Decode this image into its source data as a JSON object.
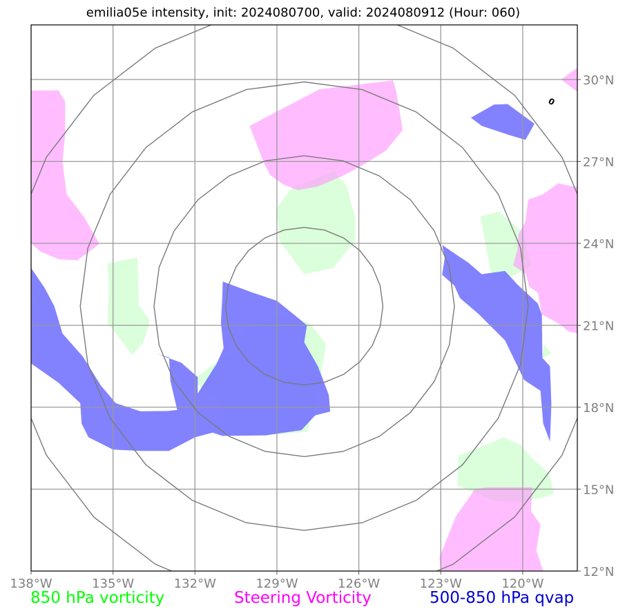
{
  "title": "emilia05e intensity, init: 2024080700, valid: 2024080912 (Hour: 060)",
  "map": {
    "projection": "lat-lon",
    "extent": {
      "lon_min": -138,
      "lon_max": -118,
      "lat_min": 12,
      "lat_max": 32
    },
    "lon_ticks": [
      {
        "value": -138,
        "label": "138°W"
      },
      {
        "value": -135,
        "label": "135°W"
      },
      {
        "value": -132,
        "label": "132°W"
      },
      {
        "value": -129,
        "label": "129°W"
      },
      {
        "value": -126,
        "label": "126°W"
      },
      {
        "value": -123,
        "label": "123°W"
      },
      {
        "value": -120,
        "label": "120°W"
      }
    ],
    "lat_ticks": [
      {
        "value": 30,
        "label": "30°N"
      },
      {
        "value": 27,
        "label": "27°N"
      },
      {
        "value": 24,
        "label": "24°N"
      },
      {
        "value": 21,
        "label": "21°N"
      },
      {
        "value": 18,
        "label": "18°N"
      },
      {
        "value": 15,
        "label": "15°N"
      },
      {
        "value": 12,
        "label": "12°N"
      }
    ],
    "gridlines": true,
    "range_rings_deg_radius": [
      2.88,
      5.5,
      8.2,
      10.9
    ],
    "storm_center": {
      "lon": -128.0,
      "lat": 21.7
    }
  },
  "layers": {
    "vort850": {
      "name": "850 hPa vorticity",
      "color": "#ccffcc",
      "polygons": [
        [
          [
            -128.45,
            26.03
          ],
          [
            -126.9,
            26.63
          ],
          [
            -126.45,
            26.11
          ],
          [
            -126.14,
            24.98
          ],
          [
            -126.14,
            24.09
          ],
          [
            -126.94,
            23.1
          ],
          [
            -128.0,
            22.87
          ],
          [
            -128.9,
            24.09
          ],
          [
            -129.0,
            25.3
          ]
        ],
        [
          [
            -135.2,
            23.26
          ],
          [
            -134.1,
            23.48
          ],
          [
            -134.06,
            21.74
          ],
          [
            -133.65,
            21.15
          ],
          [
            -133.9,
            20.36
          ],
          [
            -134.3,
            19.92
          ],
          [
            -135.2,
            21.1
          ],
          [
            -135.15,
            22.4
          ]
        ],
        [
          [
            -121.55,
            24.98
          ],
          [
            -120.87,
            25.17
          ],
          [
            -119.97,
            24.38
          ],
          [
            -119.67,
            23.17
          ],
          [
            -120.3,
            22.84
          ],
          [
            -121.1,
            22.6
          ]
        ],
        [
          [
            -119.28,
            19.8
          ],
          [
            -118.95,
            19.97
          ],
          [
            -119.23,
            20.32
          ]
        ],
        [
          [
            -132.0,
            19.07
          ],
          [
            -130.54,
            20.13
          ],
          [
            -130.2,
            20.86
          ],
          [
            -128.96,
            21.32
          ],
          [
            -127.8,
            21.08
          ],
          [
            -127.2,
            20.31
          ],
          [
            -127.48,
            18.6
          ],
          [
            -127.88,
            17.1
          ],
          [
            -129.4,
            16.98
          ],
          [
            -130.95,
            17.0
          ],
          [
            -131.0,
            18.12
          ],
          [
            -131.92,
            18.84
          ]
        ],
        [
          [
            -121.4,
            16.6
          ],
          [
            -120.7,
            16.9
          ],
          [
            -120.05,
            16.6
          ],
          [
            -119.65,
            16.12
          ],
          [
            -119.05,
            15.6
          ],
          [
            -118.85,
            14.84
          ],
          [
            -119.25,
            14.7
          ],
          [
            -120.1,
            14.54
          ],
          [
            -121.0,
            14.56
          ],
          [
            -122.4,
            15.13
          ],
          [
            -122.35,
            16.23
          ]
        ]
      ]
    },
    "steering": {
      "name": "Steering Vorticity",
      "color": "#ff99ff",
      "polygons": [
        [
          [
            -138.0,
            29.6
          ],
          [
            -137.0,
            29.6
          ],
          [
            -136.75,
            29.2
          ],
          [
            -136.75,
            28.0
          ],
          [
            -136.85,
            27.0
          ],
          [
            -136.7,
            25.8
          ],
          [
            -136.05,
            24.95
          ],
          [
            -135.5,
            23.98
          ],
          [
            -136.0,
            23.6
          ],
          [
            -136.3,
            23.38
          ],
          [
            -137.0,
            23.42
          ],
          [
            -137.65,
            23.7
          ],
          [
            -138.0,
            24.0
          ]
        ],
        [
          [
            -130.0,
            28.3
          ],
          [
            -127.45,
            29.64
          ],
          [
            -124.75,
            29.97
          ],
          [
            -124.63,
            29.56
          ],
          [
            -124.5,
            28.8
          ],
          [
            -124.4,
            28.15
          ],
          [
            -125.0,
            27.4
          ],
          [
            -125.8,
            26.9
          ],
          [
            -126.55,
            26.49
          ],
          [
            -127.5,
            26.08
          ],
          [
            -128.23,
            25.95
          ],
          [
            -128.75,
            26.15
          ],
          [
            -129.25,
            26.5
          ],
          [
            -129.5,
            27.0
          ]
        ],
        [
          [
            -117.9,
            30.5
          ],
          [
            -118.6,
            30.0
          ],
          [
            -117.8,
            29.4
          ]
        ],
        [
          [
            -118.0,
            26.05
          ],
          [
            -118.7,
            26.2
          ],
          [
            -119.25,
            25.8
          ],
          [
            -119.8,
            25.6
          ],
          [
            -119.9,
            24.8
          ],
          [
            -120.15,
            24.35
          ],
          [
            -120.2,
            23.75
          ],
          [
            -120.35,
            23.2
          ],
          [
            -119.9,
            22.9
          ],
          [
            -119.75,
            22.4
          ],
          [
            -119.45,
            22.2
          ],
          [
            -119.3,
            21.4
          ],
          [
            -118.75,
            21.1
          ],
          [
            -118.6,
            21.0
          ],
          [
            -118.3,
            20.76
          ],
          [
            -118.0,
            20.72
          ]
        ],
        [
          [
            -121.3,
            15.07
          ],
          [
            -119.65,
            15.07
          ],
          [
            -119.7,
            14.2
          ],
          [
            -119.35,
            13.7
          ],
          [
            -119.5,
            12.75
          ],
          [
            -119.25,
            12.0
          ],
          [
            -123.0,
            12.0
          ],
          [
            -123.05,
            12.5
          ],
          [
            -122.45,
            14.0
          ],
          [
            -121.75,
            15.0
          ]
        ]
      ]
    },
    "qvap": {
      "name": "500-850 hPa qvap",
      "color": "#7777ff",
      "polygons": [
        [
          [
            -130.98,
            22.6
          ],
          [
            -129.9,
            22.2
          ],
          [
            -129.0,
            21.9
          ],
          [
            -128.2,
            21.25
          ],
          [
            -127.9,
            21.0
          ],
          [
            -128.0,
            20.38
          ],
          [
            -127.5,
            19.5
          ],
          [
            -127.1,
            18.45
          ],
          [
            -127.05,
            17.84
          ],
          [
            -127.6,
            17.7
          ],
          [
            -128.1,
            17.16
          ],
          [
            -129.0,
            17.03
          ],
          [
            -129.4,
            16.97
          ],
          [
            -131.0,
            16.95
          ],
          [
            -131.35,
            17.07
          ],
          [
            -132.0,
            16.9
          ],
          [
            -132.95,
            16.4
          ],
          [
            -134.0,
            16.4
          ],
          [
            -135.0,
            16.45
          ],
          [
            -135.9,
            16.9
          ],
          [
            -136.15,
            17.4
          ],
          [
            -136.2,
            18.15
          ],
          [
            -137.0,
            18.9
          ],
          [
            -138.0,
            19.6
          ],
          [
            -138.0,
            23.1
          ],
          [
            -137.5,
            22.36
          ],
          [
            -137.15,
            21.7
          ],
          [
            -136.85,
            20.7
          ],
          [
            -136.1,
            19.85
          ],
          [
            -135.45,
            18.8
          ],
          [
            -134.9,
            18.15
          ],
          [
            -134.0,
            17.85
          ],
          [
            -133.0,
            17.86
          ],
          [
            -132.65,
            17.9
          ],
          [
            -132.9,
            18.97
          ],
          [
            -132.95,
            19.83
          ],
          [
            -133.38,
            19.95
          ],
          [
            -132.5,
            19.63
          ],
          [
            -131.9,
            19.1
          ],
          [
            -131.9,
            18.5
          ],
          [
            -131.2,
            19.6
          ],
          [
            -130.95,
            20.16
          ],
          [
            -131.05,
            21.1
          ],
          [
            -131.0,
            22.0
          ]
        ],
        [
          [
            -122.95,
            23.94
          ],
          [
            -122.85,
            23.5
          ],
          [
            -122.95,
            22.85
          ],
          [
            -122.5,
            22.45
          ],
          [
            -122.3,
            22.0
          ],
          [
            -121.6,
            21.4
          ],
          [
            -120.65,
            20.45
          ],
          [
            -119.95,
            19.0
          ],
          [
            -119.35,
            18.6
          ],
          [
            -119.25,
            17.4
          ],
          [
            -119.0,
            16.74
          ],
          [
            -118.95,
            18.1
          ],
          [
            -119.0,
            19.5
          ],
          [
            -119.28,
            19.8
          ],
          [
            -119.3,
            21.4
          ],
          [
            -119.45,
            21.8
          ],
          [
            -120.2,
            22.5
          ],
          [
            -120.65,
            22.99
          ],
          [
            -121.5,
            22.87
          ],
          [
            -122.0,
            23.3
          ],
          [
            -122.3,
            23.5
          ]
        ],
        [
          [
            -121.05,
            29.08
          ],
          [
            -120.55,
            29.1
          ],
          [
            -119.57,
            28.38
          ],
          [
            -119.9,
            27.79
          ],
          [
            -120.5,
            27.97
          ],
          [
            -121.5,
            28.3
          ],
          [
            -121.9,
            28.6
          ]
        ]
      ]
    }
  },
  "contour": {
    "label": "0",
    "lon": -119.0,
    "lat": 29.1
  },
  "legend": [
    {
      "label": "850 hPa vorticity",
      "color": "#00ff00"
    },
    {
      "label": "Steering Vorticity",
      "color": "#ff00ff"
    },
    {
      "label": "500-850 hPa qvap",
      "color": "#0000d0"
    }
  ]
}
